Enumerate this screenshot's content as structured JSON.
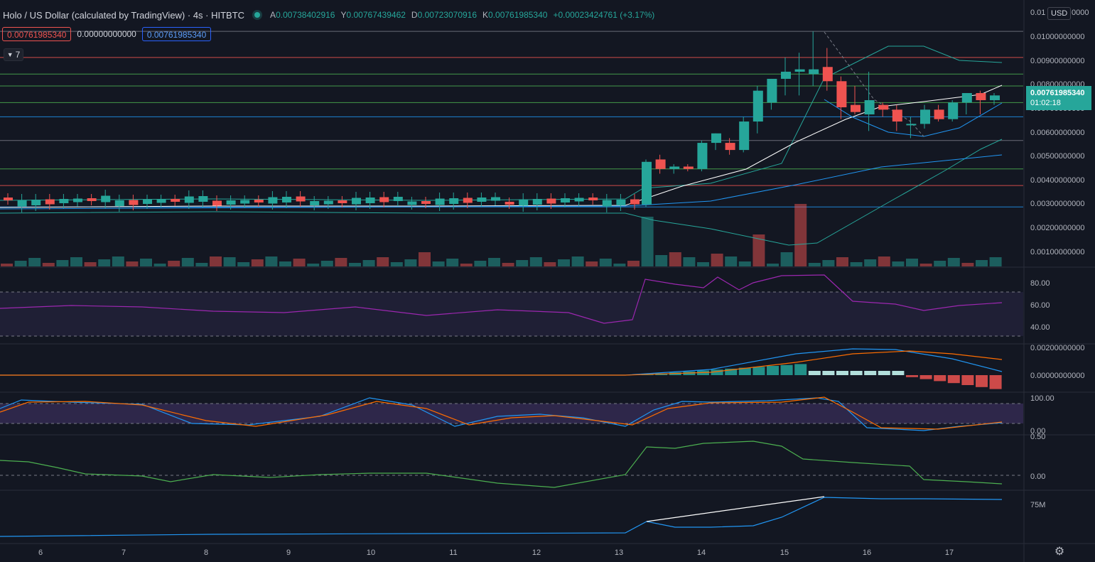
{
  "header": {
    "title": "Holo / US Dollar (calculated by TradingView) · 4s · HITBTC",
    "ohlc": [
      {
        "key": "A",
        "value": "0.00738402916"
      },
      {
        "key": "Y",
        "value": "0.00767439462"
      },
      {
        "key": "D",
        "value": "0.00723070916"
      },
      {
        "key": "K",
        "value": "0.00761985340"
      }
    ],
    "change": "+0.00023424761 (+3.17%)"
  },
  "value_boxes": [
    "0.00761985340",
    "0.00000000000",
    "0.00761985340"
  ],
  "collapse_count": "7",
  "currency_button": "USD",
  "last_price": {
    "value": "0.00761985340",
    "countdown": "01:02:18"
  },
  "price_axis": [
    "0.01",
    "0000",
    "0.01000000000",
    "0.00900000000",
    "0.00800000000",
    "0.00700000000",
    "0.00600000000",
    "0.00500000000",
    "0.00400000000",
    "0.00300000000",
    "0.00200000000",
    "0.00100000000"
  ],
  "rsi_axis": [
    "80.00",
    "60.00",
    "40.00"
  ],
  "macd_axis": [
    "0.00200000000",
    "0.00000000000"
  ],
  "stoch_axis": [
    "100.00",
    "0.00"
  ],
  "osc_axis": [
    "0.50",
    "0.00"
  ],
  "vol_axis": [
    "75M"
  ],
  "time_axis": [
    "6",
    "7",
    "8",
    "9",
    "10",
    "11",
    "12",
    "13",
    "14",
    "15",
    "16",
    "17"
  ],
  "colors": {
    "background": "#131722",
    "up": "#26a69a",
    "down": "#ef5350",
    "rsi": "#9c27b0",
    "macd": "#2196f3",
    "signal": "#ff6d00"
  },
  "chart_data": {
    "type": "candlestick",
    "x_ticks": [
      "6",
      "7",
      "8",
      "9",
      "10",
      "11",
      "12",
      "13",
      "14",
      "15",
      "16",
      "17"
    ],
    "candles_recent": [
      {
        "o": 0.003,
        "h": 0.0049,
        "l": 0.0029,
        "c": 0.0048
      },
      {
        "o": 0.0049,
        "h": 0.0051,
        "l": 0.0043,
        "c": 0.0045
      },
      {
        "o": 0.0045,
        "h": 0.0047,
        "l": 0.0043,
        "c": 0.0046
      },
      {
        "o": 0.0046,
        "h": 0.0047,
        "l": 0.0044,
        "c": 0.0045
      },
      {
        "o": 0.0045,
        "h": 0.0057,
        "l": 0.0044,
        "c": 0.0056
      },
      {
        "o": 0.0056,
        "h": 0.006,
        "l": 0.0053,
        "c": 0.006
      },
      {
        "o": 0.0056,
        "h": 0.0058,
        "l": 0.0051,
        "c": 0.0053
      },
      {
        "o": 0.0053,
        "h": 0.0067,
        "l": 0.0052,
        "c": 0.0065
      },
      {
        "o": 0.0065,
        "h": 0.008,
        "l": 0.006,
        "c": 0.0078
      },
      {
        "o": 0.0073,
        "h": 0.0083,
        "l": 0.007,
        "c": 0.0083
      },
      {
        "o": 0.0083,
        "h": 0.0092,
        "l": 0.0076,
        "c": 0.0086
      },
      {
        "o": 0.0086,
        "h": 0.0094,
        "l": 0.0076,
        "c": 0.0087
      },
      {
        "o": 0.0085,
        "h": 0.0103,
        "l": 0.008,
        "c": 0.0087
      },
      {
        "o": 0.0088,
        "h": 0.0096,
        "l": 0.0078,
        "c": 0.0082
      },
      {
        "o": 0.0082,
        "h": 0.0084,
        "l": 0.0066,
        "c": 0.0071
      },
      {
        "o": 0.0072,
        "h": 0.008,
        "l": 0.0068,
        "c": 0.0069
      },
      {
        "o": 0.0068,
        "h": 0.0086,
        "l": 0.0061,
        "c": 0.0074
      },
      {
        "o": 0.0072,
        "h": 0.0073,
        "l": 0.0067,
        "c": 0.007
      },
      {
        "o": 0.007,
        "h": 0.0072,
        "l": 0.0061,
        "c": 0.0065
      },
      {
        "o": 0.0064,
        "h": 0.0067,
        "l": 0.0058,
        "c": 0.0064
      },
      {
        "o": 0.0064,
        "h": 0.0072,
        "l": 0.0062,
        "c": 0.007
      },
      {
        "o": 0.007,
        "h": 0.0072,
        "l": 0.0065,
        "c": 0.0066
      },
      {
        "o": 0.0066,
        "h": 0.0074,
        "l": 0.0065,
        "c": 0.0073
      },
      {
        "o": 0.0073,
        "h": 0.0077,
        "l": 0.0068,
        "c": 0.0077
      },
      {
        "o": 0.0077,
        "h": 0.0078,
        "l": 0.0068,
        "c": 0.0074
      },
      {
        "o": 0.0074,
        "h": 0.0077,
        "l": 0.0072,
        "c": 0.0076
      }
    ],
    "horizontal_levels": [
      0.0103,
      0.0092,
      0.0085,
      0.008,
      0.0073,
      0.0067,
      0.0057,
      0.0045,
      0.0038,
      0.0029
    ],
    "ylim": [
      0.0,
      0.0108
    ]
  }
}
